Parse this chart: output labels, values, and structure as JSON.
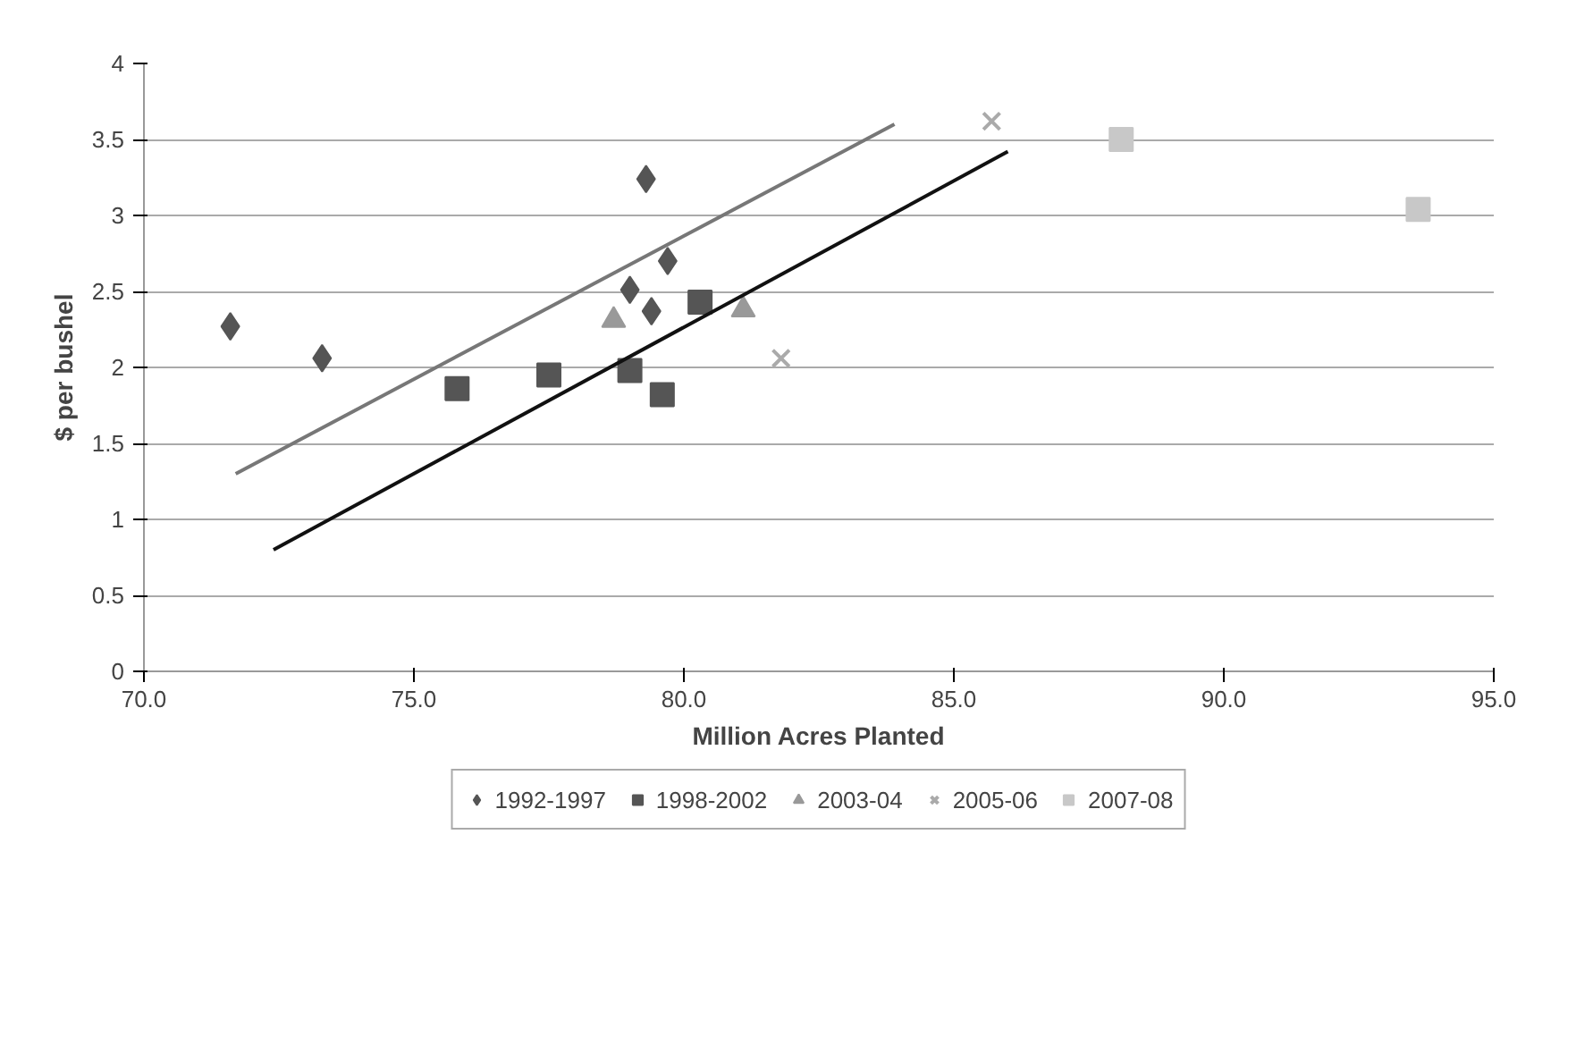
{
  "chart_data": {
    "type": "scatter",
    "xlabel": "Million Acres Planted",
    "ylabel": "$ per bushel",
    "xlim": [
      70,
      95
    ],
    "ylim": [
      0,
      4
    ],
    "xticks": [
      {
        "value": 70,
        "label": "70.0"
      },
      {
        "value": 75,
        "label": "75.0"
      },
      {
        "value": 80,
        "label": "80.0"
      },
      {
        "value": 85,
        "label": "85.0"
      },
      {
        "value": 90,
        "label": "90.0"
      },
      {
        "value": 95,
        "label": "95.0"
      }
    ],
    "yticks": [
      0,
      0.5,
      1,
      1.5,
      2,
      2.5,
      3,
      3.5,
      4
    ],
    "grid": "y",
    "legend": "bottom",
    "series": [
      {
        "name": "1992-1997",
        "color": "#555555",
        "marker": "diamond",
        "x": [
          71.6,
          73.3,
          79.3,
          79.0,
          79.7,
          79.4
        ],
        "values": [
          2.27,
          2.06,
          3.24,
          2.51,
          2.7,
          2.37
        ]
      },
      {
        "name": "1998-2002",
        "color": "#555555",
        "marker": "square",
        "x": [
          75.8,
          77.5,
          79.0,
          79.6,
          80.3
        ],
        "values": [
          1.86,
          1.95,
          1.98,
          1.82,
          2.43
        ]
      },
      {
        "name": "2003-04",
        "color": "#999999",
        "marker": "triangle",
        "x": [
          78.7,
          81.1
        ],
        "values": [
          2.31,
          2.38
        ]
      },
      {
        "name": "2005-06",
        "color": "#aaaaaa",
        "marker": "cross",
        "x": [
          81.8,
          85.7
        ],
        "values": [
          2.06,
          3.62
        ]
      },
      {
        "name": "2007-08",
        "color": "#c8c8c8",
        "marker": "square",
        "x": [
          88.1,
          93.6
        ],
        "values": [
          3.5,
          3.04
        ]
      },
      {
        "type": "line",
        "color": "#777777",
        "x": [
          71.7,
          83.9
        ],
        "values": [
          1.3,
          3.6
        ]
      },
      {
        "type": "line",
        "color": "#111111",
        "x": [
          72.4,
          86.0
        ],
        "values": [
          0.8,
          3.42
        ]
      }
    ]
  }
}
